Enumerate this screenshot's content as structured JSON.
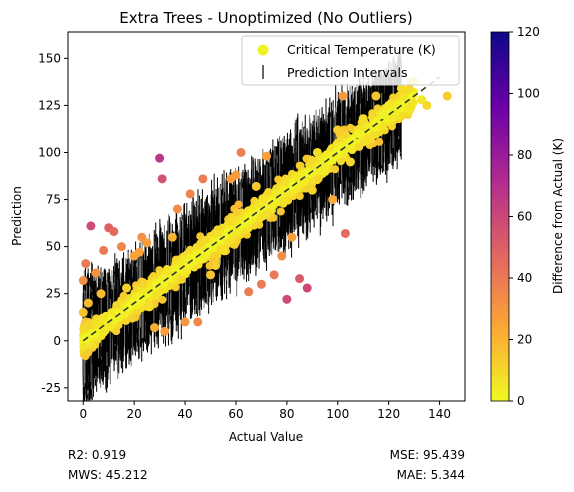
{
  "chart_data": {
    "type": "scatter",
    "title": "Extra Trees - Unoptimized (No Outliers)",
    "xlabel": "Actual Value",
    "ylabel": "Prediction",
    "xlim": [
      -6,
      150
    ],
    "ylim": [
      -32,
      164
    ],
    "xticks": [
      0,
      20,
      40,
      60,
      80,
      100,
      120,
      140
    ],
    "yticks": [
      -25,
      0,
      25,
      50,
      75,
      100,
      125,
      150
    ],
    "grid": false,
    "legend_position": "top-right",
    "legend": [
      "Critical Temperature (K)",
      "Prediction Intervals"
    ],
    "reference_line": {
      "style": "dashed",
      "color": "#333333",
      "from": [
        0,
        0
      ],
      "to": [
        140,
        140
      ]
    },
    "colorbar": {
      "label": "Difference from Actual (K)",
      "range": [
        0,
        120
      ],
      "ticks": [
        0,
        20,
        40,
        60,
        80,
        100,
        120
      ],
      "colormap": "plasma_r",
      "colors": [
        "#f0f921",
        "#fca636",
        "#e16462",
        "#b12a90",
        "#6a00a8",
        "#0d0887"
      ]
    },
    "interval_color": "#000000",
    "interval_count_approx": 2400,
    "interval_halfwidth_typical": 18,
    "points": [
      [
        0,
        32
      ],
      [
        0,
        15
      ],
      [
        2,
        20
      ],
      [
        1,
        41
      ],
      [
        3,
        61
      ],
      [
        5,
        36
      ],
      [
        7,
        25
      ],
      [
        8,
        48
      ],
      [
        10,
        60
      ],
      [
        12,
        58
      ],
      [
        15,
        50
      ],
      [
        17,
        28
      ],
      [
        20,
        45
      ],
      [
        22,
        47
      ],
      [
        23,
        55
      ],
      [
        25,
        52
      ],
      [
        26,
        18
      ],
      [
        28,
        7
      ],
      [
        30,
        97
      ],
      [
        31,
        86
      ],
      [
        32,
        5
      ],
      [
        35,
        55
      ],
      [
        37,
        70
      ],
      [
        40,
        10
      ],
      [
        42,
        78
      ],
      [
        45,
        10
      ],
      [
        47,
        86
      ],
      [
        50,
        35
      ],
      [
        52,
        40
      ],
      [
        55,
        48
      ],
      [
        58,
        86
      ],
      [
        60,
        88
      ],
      [
        62,
        100
      ],
      [
        65,
        26
      ],
      [
        68,
        82
      ],
      [
        70,
        30
      ],
      [
        72,
        98
      ],
      [
        75,
        35
      ],
      [
        78,
        45
      ],
      [
        80,
        22
      ],
      [
        82,
        55
      ],
      [
        85,
        33
      ],
      [
        88,
        28
      ],
      [
        90,
        80
      ],
      [
        92,
        100
      ],
      [
        95,
        90
      ],
      [
        98,
        75
      ],
      [
        100,
        112
      ],
      [
        102,
        130
      ],
      [
        103,
        57
      ],
      [
        105,
        95
      ],
      [
        108,
        110
      ],
      [
        110,
        118
      ],
      [
        115,
        130
      ],
      [
        118,
        120
      ],
      [
        120,
        125
      ],
      [
        125,
        134
      ],
      [
        128,
        122
      ],
      [
        130,
        138
      ],
      [
        133,
        128
      ],
      [
        135,
        125
      ],
      [
        143,
        130
      ]
    ],
    "point_differences": [
      32,
      15,
      18,
      40,
      58,
      31,
      18,
      40,
      50,
      46,
      35,
      11,
      25,
      25,
      32,
      27,
      8,
      21,
      67,
      55,
      27,
      20,
      33,
      30,
      36,
      35,
      39,
      15,
      12,
      7,
      28,
      28,
      38,
      39,
      14,
      40,
      26,
      40,
      33,
      58,
      27,
      52,
      60,
      10,
      8,
      5,
      23,
      12,
      28,
      46,
      10,
      2,
      8,
      15,
      2,
      5,
      9,
      6,
      8,
      5,
      10,
      13
    ]
  },
  "stats": {
    "r2": "R2: 0.919",
    "mws": "MWS: 45.212",
    "mse": "MSE: 95.439",
    "mae": "MAE: 5.344"
  }
}
